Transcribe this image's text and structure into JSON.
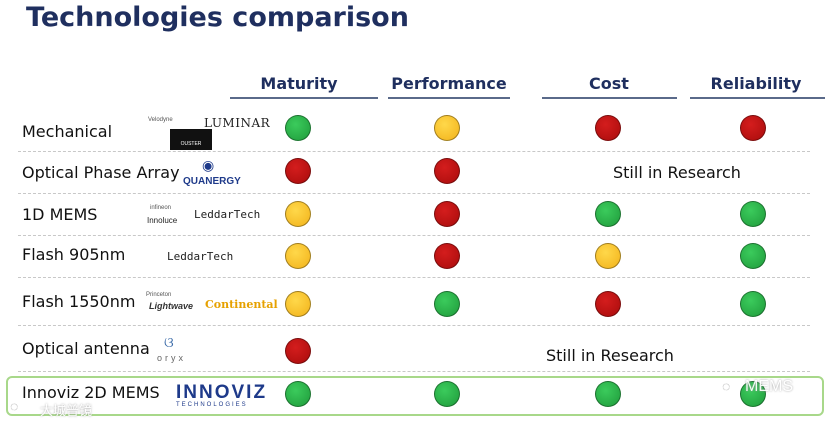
{
  "title": "Technologies comparison",
  "columns": [
    "Maturity",
    "Performance",
    "Cost",
    "Reliability"
  ],
  "rows": [
    {
      "label": "Mechanical",
      "ratings": [
        "green",
        "yellow",
        "red",
        "red"
      ],
      "logos": [
        "Velodyne",
        "LUMINAR",
        "OUSTER"
      ]
    },
    {
      "label": "Optical Phase Array",
      "ratings": [
        "red",
        "red"
      ],
      "note": "Still in Research",
      "logos": [
        "QUANERGY"
      ]
    },
    {
      "label": "1D MEMS",
      "ratings": [
        "yellow",
        "red",
        "green",
        "green"
      ],
      "logos": [
        "infineon",
        "Innoluce",
        "LeddarTech"
      ]
    },
    {
      "label": "Flash 905nm",
      "ratings": [
        "yellow",
        "red",
        "yellow",
        "green"
      ],
      "logos": [
        "LeddarTech"
      ]
    },
    {
      "label": "Flash 1550nm",
      "ratings": [
        "yellow",
        "green",
        "red",
        "green"
      ],
      "logos": [
        "Princeton",
        "Lightwave",
        "Continental"
      ]
    },
    {
      "label": "Optical antenna",
      "ratings": [
        "red"
      ],
      "note": "Still in Research",
      "logos": [
        "oryx"
      ]
    },
    {
      "label": "Innoviz 2D MEMS",
      "ratings": [
        "green",
        "green",
        "green",
        "green"
      ],
      "logos": [
        "INNOVIZ",
        "TECHNOLOGIES"
      ]
    }
  ],
  "colors": {
    "green": "#2bb24c",
    "yellow": "#f5c022",
    "red": "#c01414",
    "title": "#1f2f5f",
    "highlight": "#a8d88a"
  },
  "watermarks": {
    "left": "大城普镜",
    "right": "MEMS"
  }
}
